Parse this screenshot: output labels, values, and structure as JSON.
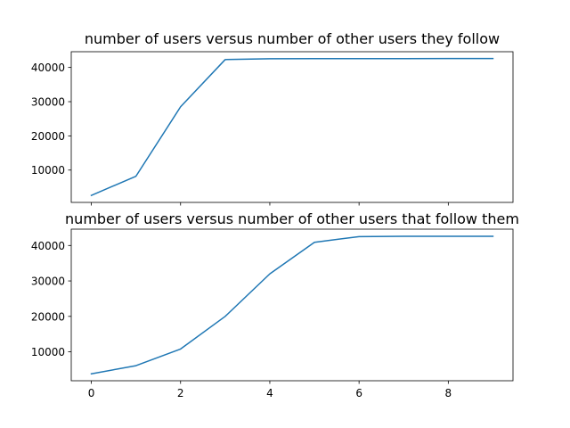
{
  "colors": {
    "series": "#1f77b4"
  },
  "chart_data": [
    {
      "type": "line",
      "title": "number of users versus number of other users they follow",
      "xlabel": "",
      "ylabel": "",
      "xlim": [
        -0.45,
        9.45
      ],
      "ylim": [
        550,
        44600
      ],
      "show_xticklabels": false,
      "xticks": [
        0,
        2,
        4,
        6,
        8
      ],
      "yticks": [
        10000,
        20000,
        30000,
        40000
      ],
      "grid": false,
      "series": [
        {
          "x": [
            0,
            1,
            2,
            3,
            4,
            5,
            6,
            7,
            8,
            9
          ],
          "values": [
            2600,
            8200,
            28500,
            42300,
            42550,
            42580,
            42590,
            42590,
            42600,
            42600
          ]
        }
      ]
    },
    {
      "type": "line",
      "title": "number of users versus number of other users that follow them",
      "xlabel": "",
      "ylabel": "",
      "xlim": [
        -0.45,
        9.45
      ],
      "ylim": [
        1850,
        44600
      ],
      "show_xticklabels": true,
      "xticks": [
        0,
        2,
        4,
        6,
        8
      ],
      "yticks": [
        10000,
        20000,
        30000,
        40000
      ],
      "grid": false,
      "series": [
        {
          "x": [
            0,
            1,
            2,
            3,
            4,
            5,
            6,
            7,
            8,
            9
          ],
          "values": [
            3800,
            6100,
            10800,
            20000,
            32000,
            40900,
            42500,
            42580,
            42590,
            42600
          ]
        }
      ]
    }
  ]
}
